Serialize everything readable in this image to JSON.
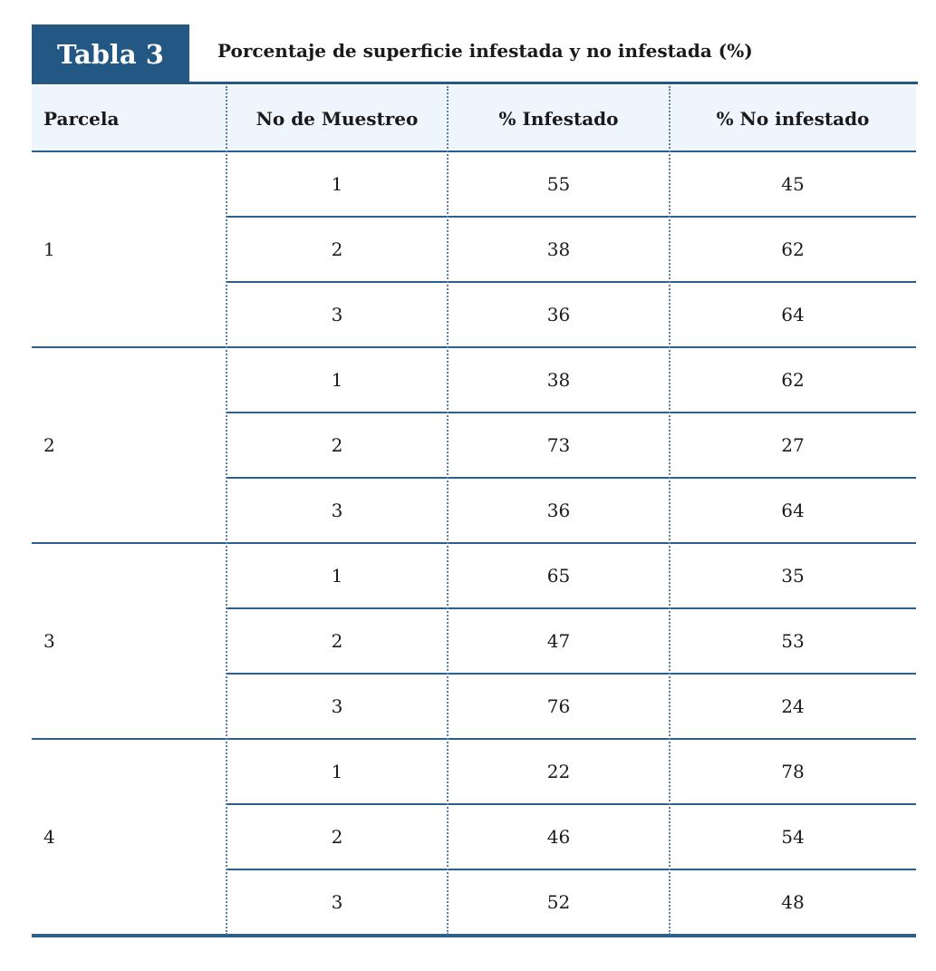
{
  "header": {
    "tab": "Tabla 3",
    "title": "Porcentaje de superficie infestada y no infestada (%)"
  },
  "table": {
    "columns": [
      "Parcela",
      "No de Muestreo",
      "% Infestado",
      "% No infestado"
    ],
    "groups": [
      {
        "parcela": 1,
        "rows": [
          [
            1,
            55,
            45
          ],
          [
            2,
            38,
            62
          ],
          [
            3,
            36,
            64
          ]
        ]
      },
      {
        "parcela": 2,
        "rows": [
          [
            1,
            38,
            62
          ],
          [
            2,
            73,
            27
          ],
          [
            3,
            36,
            64
          ]
        ]
      },
      {
        "parcela": 3,
        "rows": [
          [
            1,
            65,
            35
          ],
          [
            2,
            47,
            53
          ],
          [
            3,
            76,
            24
          ]
        ]
      },
      {
        "parcela": 4,
        "rows": [
          [
            1,
            22,
            78
          ],
          [
            2,
            46,
            54
          ],
          [
            3,
            52,
            48
          ]
        ]
      }
    ]
  }
}
